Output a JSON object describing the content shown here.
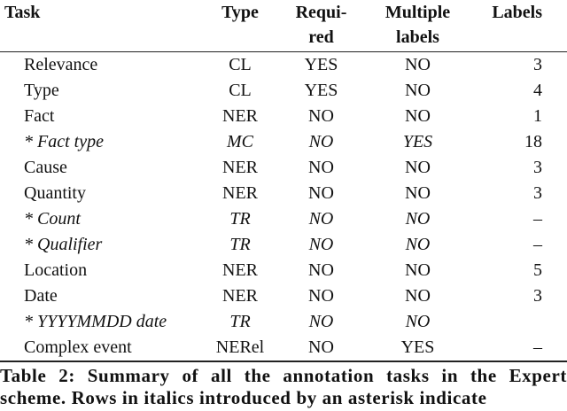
{
  "table": {
    "headers": [
      [
        "Task"
      ],
      [
        "Type"
      ],
      [
        "Requi-",
        "red"
      ],
      [
        "Multiple",
        "labels"
      ],
      [
        "Labels"
      ]
    ],
    "rows": [
      {
        "cells": [
          "Relevance",
          "CL",
          "YES",
          "NO",
          "3"
        ],
        "italic": false
      },
      {
        "cells": [
          "Type",
          "CL",
          "YES",
          "NO",
          "4"
        ],
        "italic": false
      },
      {
        "cells": [
          "Fact",
          "NER",
          "NO",
          "NO",
          "1"
        ],
        "italic": false
      },
      {
        "cells": [
          "* Fact type",
          "MC",
          "NO",
          "YES",
          "18"
        ],
        "italic": true
      },
      {
        "cells": [
          "Cause",
          "NER",
          "NO",
          "NO",
          "3"
        ],
        "italic": false
      },
      {
        "cells": [
          "Quantity",
          "NER",
          "NO",
          "NO",
          "3"
        ],
        "italic": false
      },
      {
        "cells": [
          "* Count",
          "TR",
          "NO",
          "NO",
          "–"
        ],
        "italic": true
      },
      {
        "cells": [
          "* Qualifier",
          "TR",
          "NO",
          "NO",
          "–"
        ],
        "italic": true
      },
      {
        "cells": [
          "Location",
          "NER",
          "NO",
          "NO",
          "5"
        ],
        "italic": false
      },
      {
        "cells": [
          "Date",
          "NER",
          "NO",
          "NO",
          "3"
        ],
        "italic": false
      },
      {
        "cells": [
          "* YYYYMMDD date",
          "TR",
          "NO",
          "NO",
          ""
        ],
        "italic": true
      },
      {
        "cells": [
          "Complex event",
          "NERel",
          "NO",
          "YES",
          "–"
        ],
        "italic": false
      }
    ],
    "caption": "Table 2: Summary of all the annotation tasks in the Expert scheme. Rows in italics introduced by an asterisk indicate"
  }
}
